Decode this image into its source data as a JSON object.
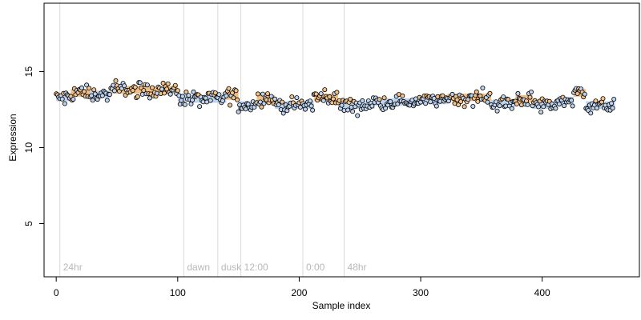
{
  "chart_data": {
    "type": "scatter",
    "xlabel": "Sample index",
    "ylabel": "Expression",
    "xlim": [
      -10,
      480
    ],
    "ylim": [
      1.5,
      19.5
    ],
    "x_ticks": [
      0,
      100,
      200,
      300,
      400
    ],
    "y_ticks": [
      5,
      10,
      15
    ],
    "grid": false,
    "colors": {
      "point_fill": "#bcd2ee",
      "point_fill_high": "#f2c08a",
      "point_stroke": "#000000",
      "band_low": "#aac4e6",
      "band_high": "#e8a860",
      "event_line": "#d9d9d9",
      "event_text": "#b8b8b8"
    },
    "events": [
      {
        "x": 3,
        "label": "24hr"
      },
      {
        "x": 105,
        "label": "dawn"
      },
      {
        "x": 133,
        "label": "dusk"
      },
      {
        "x": 152,
        "label": "12:00"
      },
      {
        "x": 203,
        "label": "0:00"
      },
      {
        "x": 237,
        "label": "48hr"
      }
    ],
    "segments": [
      {
        "x_start": 0,
        "x_end": 12,
        "level": 13.3,
        "tone": "low"
      },
      {
        "x_start": 12,
        "x_end": 28,
        "level": 13.6,
        "tone": "high"
      },
      {
        "x_start": 28,
        "x_end": 45,
        "level": 13.5,
        "tone": "low"
      },
      {
        "x_start": 45,
        "x_end": 100,
        "level": 13.8,
        "tone": "high"
      },
      {
        "x_start": 100,
        "x_end": 110,
        "level": 13.3,
        "tone": "low"
      },
      {
        "x_start": 110,
        "x_end": 140,
        "level": 13.2,
        "tone": "low"
      },
      {
        "x_start": 140,
        "x_end": 150,
        "level": 13.4,
        "tone": "high"
      },
      {
        "x_start": 150,
        "x_end": 165,
        "level": 12.8,
        "tone": "low"
      },
      {
        "x_start": 165,
        "x_end": 180,
        "level": 13.2,
        "tone": "high"
      },
      {
        "x_start": 180,
        "x_end": 212,
        "level": 12.8,
        "tone": "low"
      },
      {
        "x_start": 212,
        "x_end": 232,
        "level": 13.3,
        "tone": "high"
      },
      {
        "x_start": 232,
        "x_end": 262,
        "level": 12.8,
        "tone": "low"
      },
      {
        "x_start": 262,
        "x_end": 300,
        "level": 13.0,
        "tone": "low"
      },
      {
        "x_start": 300,
        "x_end": 322,
        "level": 13.1,
        "tone": "low"
      },
      {
        "x_start": 322,
        "x_end": 358,
        "level": 13.3,
        "tone": "high"
      },
      {
        "x_start": 358,
        "x_end": 378,
        "level": 12.9,
        "tone": "low"
      },
      {
        "x_start": 378,
        "x_end": 392,
        "level": 13.2,
        "tone": "high"
      },
      {
        "x_start": 392,
        "x_end": 412,
        "level": 12.8,
        "tone": "low"
      },
      {
        "x_start": 412,
        "x_end": 426,
        "level": 13.1,
        "tone": "low"
      },
      {
        "x_start": 426,
        "x_end": 436,
        "level": 13.6,
        "tone": "high"
      },
      {
        "x_start": 436,
        "x_end": 460,
        "level": 12.8,
        "tone": "low"
      }
    ],
    "point_noise": 0.32,
    "n_points": 460
  }
}
